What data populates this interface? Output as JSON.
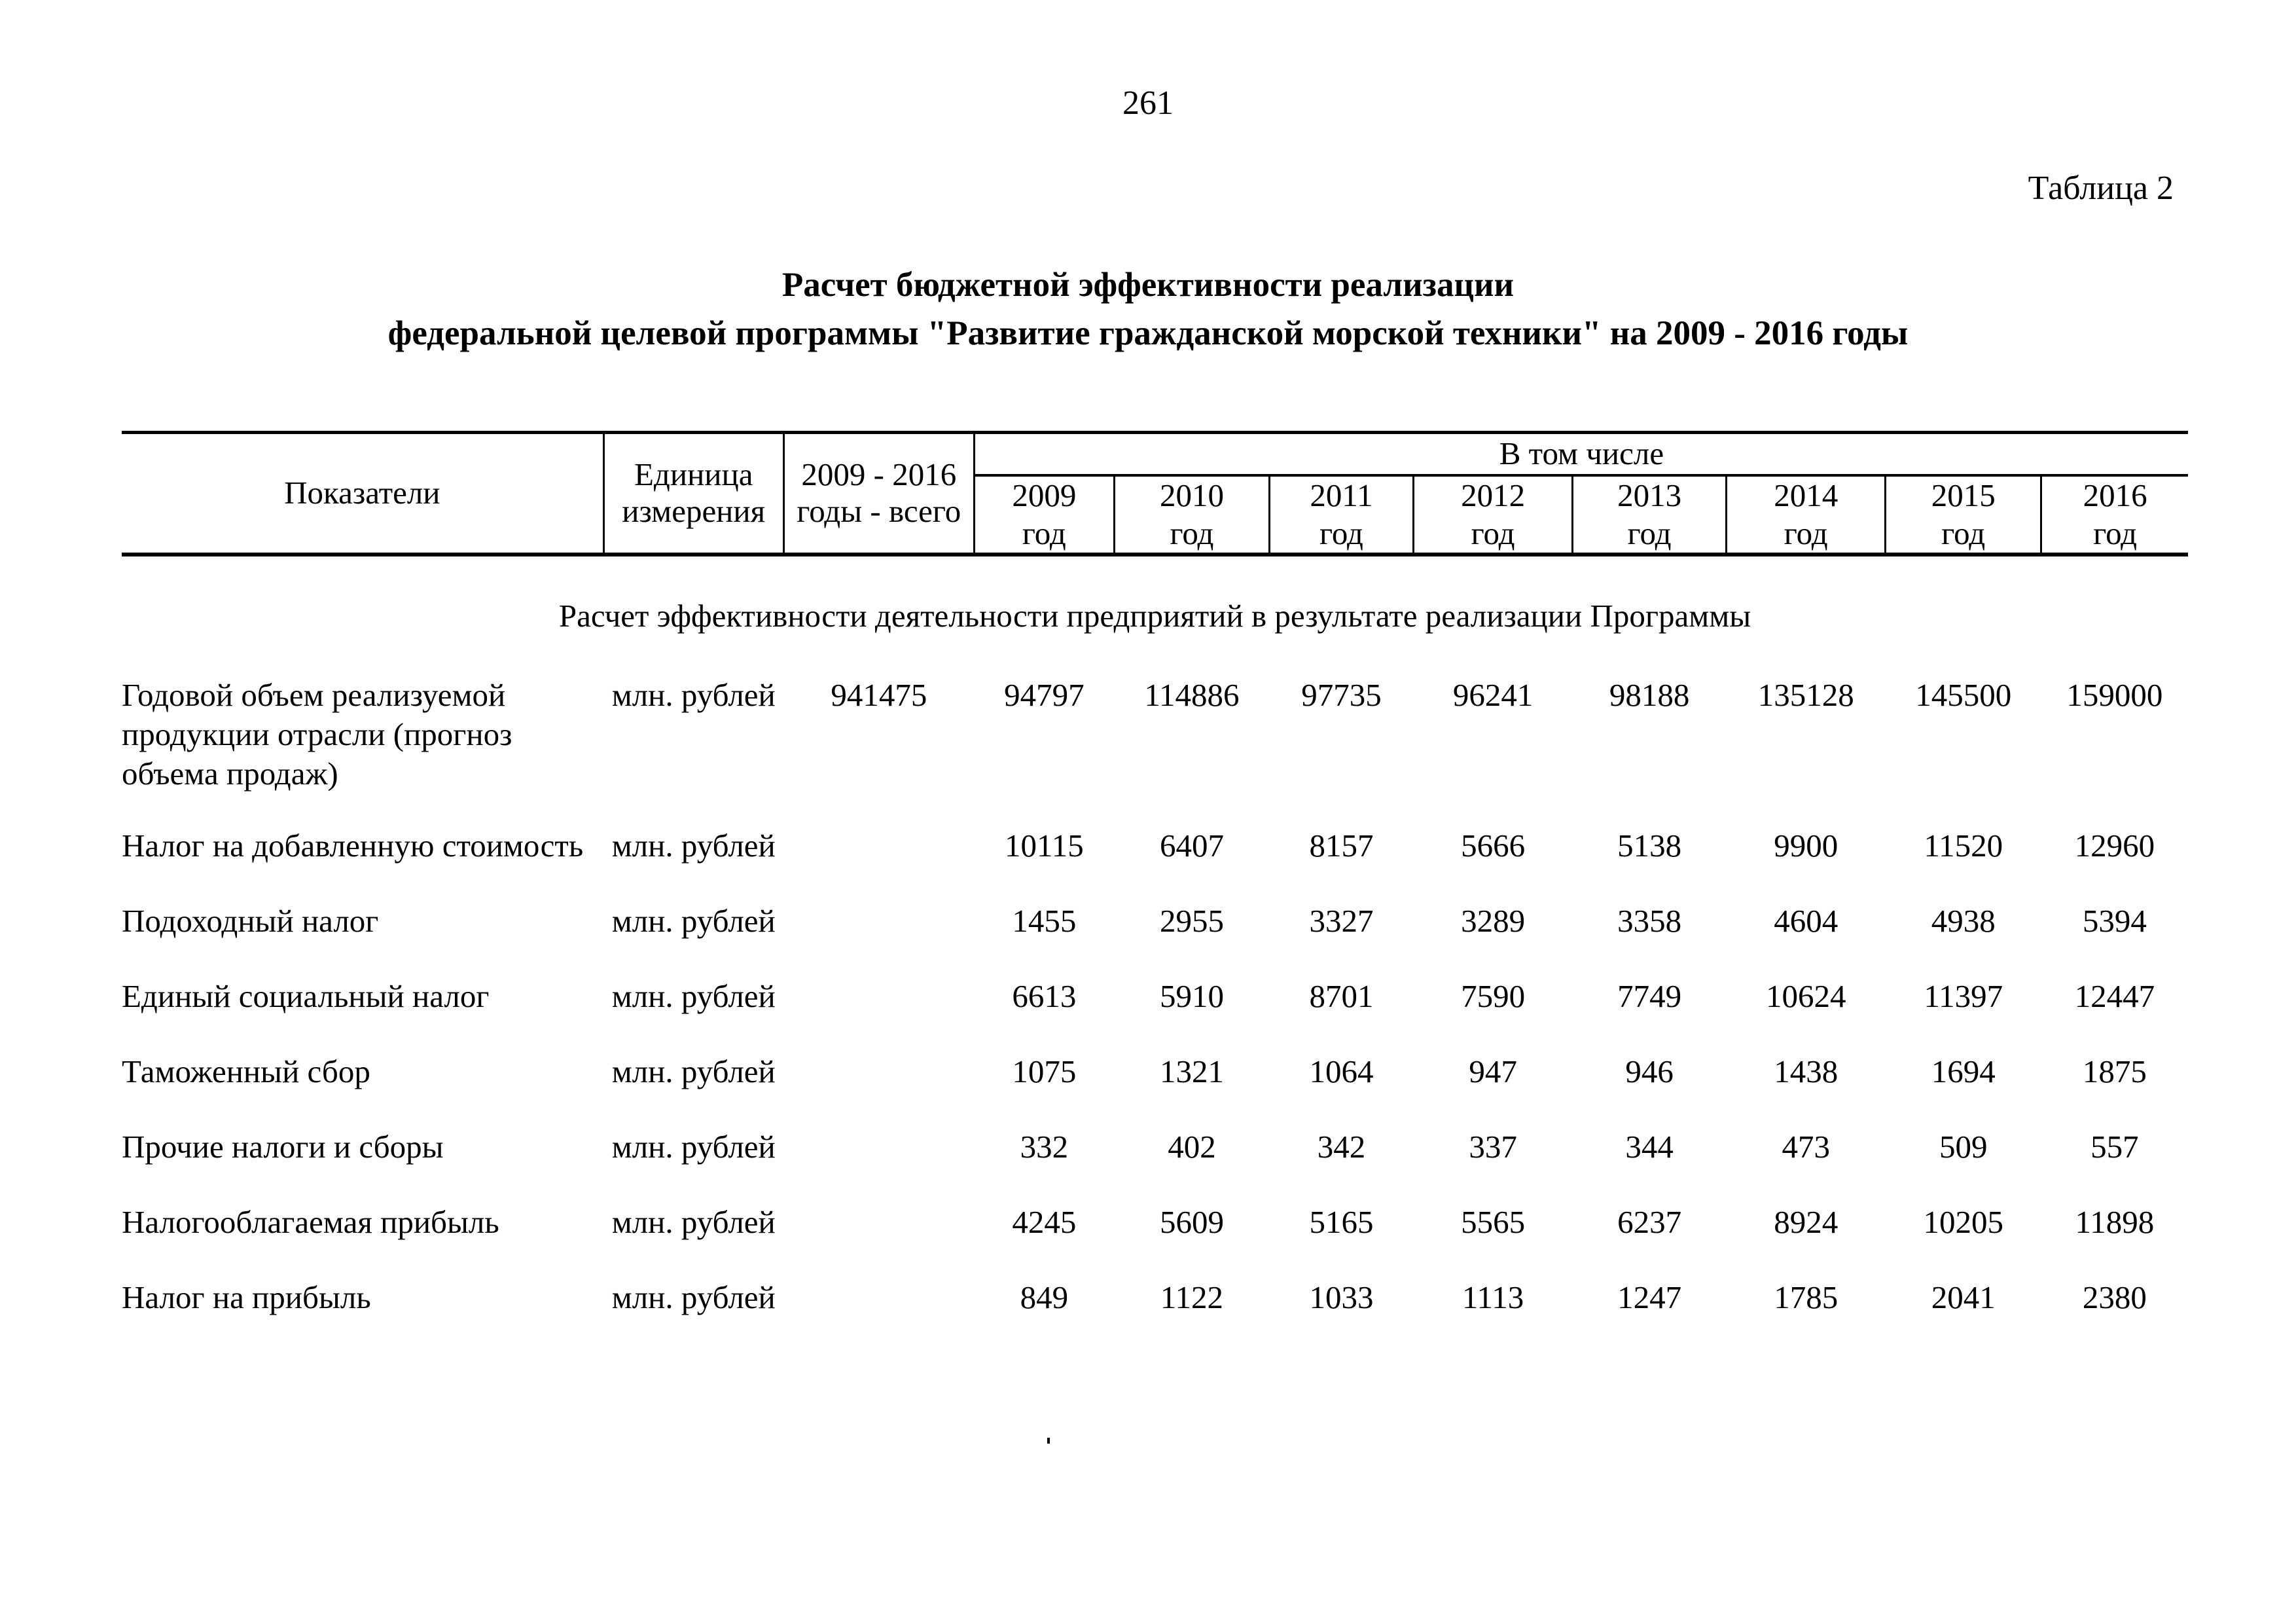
{
  "page": {
    "number": "261",
    "table_label": "Таблица 2"
  },
  "title": {
    "line1": "Расчет бюджетной эффективности реализации",
    "line2": "федеральной целевой программы \"Развитие гражданской морской техники\" на 2009 - 2016 годы"
  },
  "table": {
    "headers": {
      "indicators": "Показатели",
      "unit": "Единица\nизмерения",
      "total": "2009 - 2016\nгоды - всего",
      "including": "В том числе",
      "years": [
        "2009\nгод",
        "2010\nгод",
        "2011\nгод",
        "2012\nгод",
        "2013\nгод",
        "2014\nгод",
        "2015\nгод",
        "2016\nгод"
      ]
    },
    "section_header": "Расчет эффективности деятельности предприятий в результате реализации Программы",
    "rows": [
      {
        "indicator": "Годовой объем реализуемой\nпродукции отрасли (прогноз\nобъема продаж)",
        "unit": "млн. рублей",
        "total": "941475",
        "values": [
          "94797",
          "114886",
          "97735",
          "96241",
          "98188",
          "135128",
          "145500",
          "159000"
        ]
      },
      {
        "indicator": "Налог на добавленную стоимость",
        "unit": "млн. рублей",
        "total": "",
        "values": [
          "10115",
          "6407",
          "8157",
          "5666",
          "5138",
          "9900",
          "11520",
          "12960"
        ]
      },
      {
        "indicator": "Подоходный налог",
        "unit": "млн. рублей",
        "total": "",
        "values": [
          "1455",
          "2955",
          "3327",
          "3289",
          "3358",
          "4604",
          "4938",
          "5394"
        ]
      },
      {
        "indicator": "Единый социальный налог",
        "unit": "млн. рублей",
        "total": "",
        "values": [
          "6613",
          "5910",
          "8701",
          "7590",
          "7749",
          "10624",
          "11397",
          "12447"
        ]
      },
      {
        "indicator": "Таможенный сбор",
        "unit": "млн. рублей",
        "total": "",
        "values": [
          "1075",
          "1321",
          "1064",
          "947",
          "946",
          "1438",
          "1694",
          "1875"
        ]
      },
      {
        "indicator": "Прочие налоги и сборы",
        "unit": "млн. рублей",
        "total": "",
        "values": [
          "332",
          "402",
          "342",
          "337",
          "344",
          "473",
          "509",
          "557"
        ]
      },
      {
        "indicator": "Налогооблагаемая прибыль",
        "unit": "млн. рублей",
        "total": "",
        "values": [
          "4245",
          "5609",
          "5165",
          "5565",
          "6237",
          "8924",
          "10205",
          "11898"
        ]
      },
      {
        "indicator": "Налог на прибыль",
        "unit": "млн. рублей",
        "total": "",
        "values": [
          "849",
          "1122",
          "1033",
          "1113",
          "1247",
          "1785",
          "2041",
          "2380"
        ]
      }
    ]
  }
}
